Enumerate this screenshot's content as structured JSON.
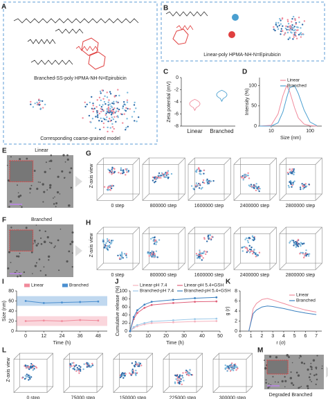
{
  "panels": {
    "A": {
      "label": "A",
      "caption": "Branched-SS-poly HPMA-NH-N=Epirubicin",
      "caption2": "Corresponding coarse-grained model"
    },
    "B": {
      "label": "B",
      "caption": "Linear-poly HPMA-NH-N=Epirubicin"
    },
    "C": {
      "label": "C",
      "type": "violin",
      "ylabel": "Zeta potential (mV)",
      "categories": [
        "Linear",
        "Branched"
      ],
      "values": [
        -4.5,
        -3
      ],
      "colors": [
        "#f08a9b",
        "#4a9fd0"
      ],
      "ylim": [
        -8,
        0
      ],
      "yticks": [
        -8,
        -6,
        -4,
        -2,
        0
      ]
    },
    "D": {
      "label": "D",
      "type": "line",
      "xlabel": "Size (nm)",
      "ylabel": "Intensity (%)",
      "xlog": true,
      "x": [
        5,
        10,
        15,
        20,
        25,
        30,
        40,
        50,
        70,
        100,
        150
      ],
      "xlim": [
        5,
        200
      ],
      "xticks": [
        10,
        100
      ],
      "ylim": [
        0,
        120
      ],
      "yticks": [
        0,
        50,
        100
      ],
      "series": [
        {
          "name": "Linear",
          "color": "#f08a9b",
          "values": [
            0,
            2,
            30,
            75,
            100,
            85,
            45,
            20,
            5,
            1,
            0
          ]
        },
        {
          "name": "Branched",
          "color": "#4a9fd0",
          "values": [
            0,
            0,
            8,
            35,
            70,
            95,
            100,
            80,
            40,
            10,
            1
          ]
        }
      ]
    },
    "E": {
      "label": "E",
      "title": "Linear"
    },
    "F": {
      "label": "F",
      "title": "Branched"
    },
    "G": {
      "label": "G",
      "axis": "Z-axis view",
      "steps": [
        "0 step",
        "800000 step",
        "1600000 step",
        "2400000 step",
        "2800000 step"
      ]
    },
    "H": {
      "label": "H",
      "axis": "Z-axis view",
      "steps": [
        "0 step",
        "800000 step",
        "1600000 step",
        "2400000 step",
        "2800000 step"
      ]
    },
    "I": {
      "label": "I",
      "type": "scatter_line",
      "xlabel": "Time (h)",
      "ylabel": "Size (nm)",
      "x": [
        0,
        12,
        24,
        36,
        48
      ],
      "xlim": [
        -6,
        54
      ],
      "xticks": [
        0,
        12,
        24,
        36,
        48
      ],
      "ylim": [
        0,
        80
      ],
      "yticks": [
        0,
        20,
        40,
        60,
        80
      ],
      "series": [
        {
          "name": "Linear",
          "color": "#f08a9b",
          "values": [
            20,
            21,
            20,
            22,
            21
          ]
        },
        {
          "name": "Branched",
          "color": "#4a8fd0",
          "values": [
            60,
            56,
            57,
            58,
            59
          ]
        }
      ]
    },
    "J": {
      "label": "J",
      "type": "scatter_line",
      "xlabel": "Time (h)",
      "ylabel": "Cumulative release (%)",
      "x": [
        0,
        2,
        4,
        8,
        12,
        24,
        36,
        48
      ],
      "xlim": [
        0,
        50
      ],
      "xticks": [
        0,
        10,
        20,
        30,
        40,
        50
      ],
      "ylim": [
        0,
        100
      ],
      "yticks": [
        0,
        20,
        40,
        60,
        80,
        100
      ],
      "series": [
        {
          "name": "Linear-pH 7.4",
          "color": "#f5b3bf",
          "values": [
            0,
            8,
            12,
            17,
            20,
            22,
            24,
            25
          ]
        },
        {
          "name": "Linear-pH 5.4+GSH",
          "color": "#e0607a",
          "values": [
            0,
            30,
            45,
            58,
            65,
            70,
            73,
            74
          ]
        },
        {
          "name": "Branched-pH 7.4",
          "color": "#9cc8e8",
          "values": [
            0,
            10,
            15,
            20,
            24,
            27,
            30,
            31
          ]
        },
        {
          "name": "Branched-pH 5.4+GSH",
          "color": "#3a80c0",
          "values": [
            0,
            35,
            52,
            66,
            73,
            78,
            82,
            84
          ]
        }
      ]
    },
    "K": {
      "label": "K",
      "type": "line",
      "xlabel": "r (σ)",
      "ylabel": "g (r)",
      "x": [
        0.8,
        1,
        1.2,
        1.5,
        2,
        2.5,
        3,
        4,
        5,
        6,
        7
      ],
      "xlim": [
        0,
        7.5
      ],
      "xticks": [
        0,
        1,
        2,
        3,
        4,
        5,
        6,
        7
      ],
      "ylim": [
        0,
        8
      ],
      "yticks": [
        0,
        2,
        4,
        6,
        8
      ],
      "series": [
        {
          "name": "Linear",
          "color": "#f08a9b",
          "values": [
            0,
            2,
            4.5,
            5.5,
            6.3,
            6.5,
            6.2,
            5.5,
            4.8,
            4.2,
            3.8
          ]
        },
        {
          "name": "Branched",
          "color": "#3a80c0",
          "values": [
            0,
            1.8,
            3.5,
            4.2,
            4.8,
            5,
            4.9,
            4.5,
            4,
            3.6,
            3.3
          ]
        }
      ]
    },
    "L": {
      "label": "L",
      "axis": "Z-axis view",
      "steps": [
        "0 step",
        "75000 step",
        "150000 step",
        "225000 step",
        "300000 step"
      ]
    },
    "M": {
      "label": "M",
      "title": "Degraded Branched"
    }
  }
}
